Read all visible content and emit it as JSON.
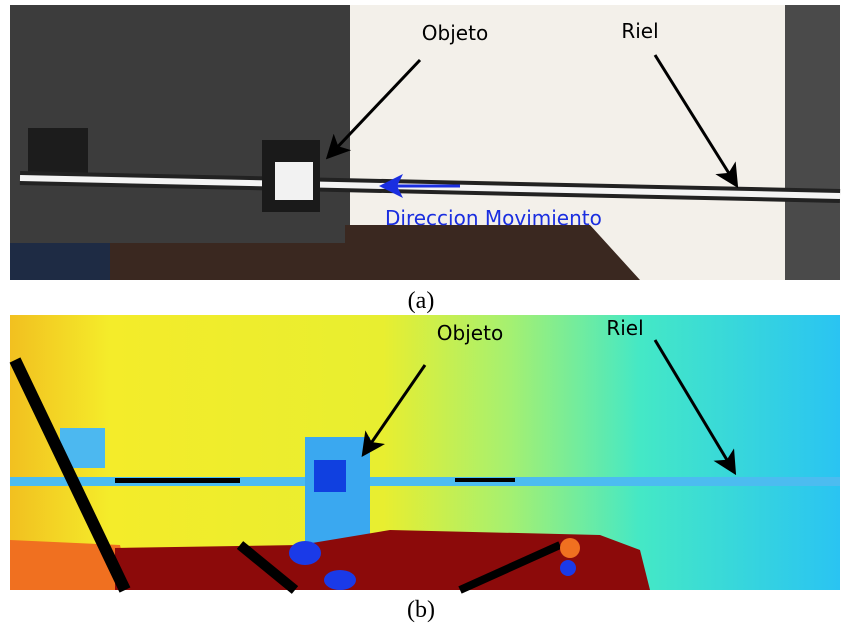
{
  "panels": [
    {
      "caption": "(a)",
      "annotations": [
        "Objeto",
        "Riel",
        "Direccion Movimiento"
      ]
    },
    {
      "caption": "(b)",
      "annotations": [
        "Objeto",
        "Riel"
      ]
    }
  ]
}
